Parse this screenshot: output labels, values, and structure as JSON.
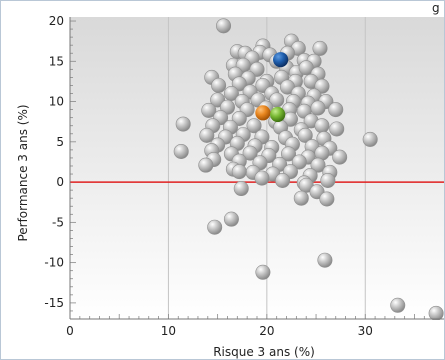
{
  "chart_data": {
    "type": "scatter",
    "title_fragment": "g",
    "xlabel": "Risque 3 ans (%)",
    "ylabel": "Performance 3 ans (%)",
    "xlim": [
      0,
      38
    ],
    "ylim": [
      -17,
      20.5
    ],
    "x_ticks": [
      0,
      10,
      20,
      30
    ],
    "y_ticks": [
      20,
      15,
      10,
      5,
      0,
      -5,
      -10,
      -15
    ],
    "grid": {
      "vertical": true,
      "horizontal": false
    },
    "reference_line": {
      "y": 0,
      "color": "#e02020"
    },
    "background_gradient": [
      "#d9d9d9",
      "#ffffff"
    ],
    "series": [
      {
        "marker_color": "#b8b8b8",
        "points": [
          [
            15.6,
            19.4
          ],
          [
            22.5,
            17.5
          ],
          [
            19.6,
            16.9
          ],
          [
            23.2,
            16.6
          ],
          [
            25.4,
            16.6
          ],
          [
            17.0,
            16.2
          ],
          [
            17.8,
            16.0
          ],
          [
            19.3,
            16.1
          ],
          [
            20.3,
            15.8
          ],
          [
            22.1,
            16.0
          ],
          [
            18.5,
            15.4
          ],
          [
            21.0,
            15.0
          ],
          [
            23.8,
            15.1
          ],
          [
            24.8,
            15.0
          ],
          [
            16.6,
            14.5
          ],
          [
            17.6,
            14.5
          ],
          [
            19.0,
            14.0
          ],
          [
            22.0,
            14.2
          ],
          [
            23.0,
            13.6
          ],
          [
            24.0,
            14.2
          ],
          [
            25.2,
            13.4
          ],
          [
            14.4,
            13.0
          ],
          [
            16.8,
            13.4
          ],
          [
            18.1,
            12.9
          ],
          [
            20.0,
            12.5
          ],
          [
            21.5,
            13.0
          ],
          [
            22.9,
            12.5
          ],
          [
            24.5,
            12.5
          ],
          [
            15.1,
            12.0
          ],
          [
            17.2,
            12.2
          ],
          [
            19.6,
            12.0
          ],
          [
            22.1,
            11.8
          ],
          [
            25.6,
            11.9
          ],
          [
            16.4,
            11.0
          ],
          [
            18.3,
            11.2
          ],
          [
            20.5,
            11.0
          ],
          [
            23.2,
            11.0
          ],
          [
            24.8,
            10.7
          ],
          [
            15.0,
            10.2
          ],
          [
            17.5,
            10.0
          ],
          [
            19.1,
            10.2
          ],
          [
            21.0,
            10.2
          ],
          [
            22.7,
            10.0
          ],
          [
            24.2,
            9.8
          ],
          [
            26.0,
            10.0
          ],
          [
            14.1,
            8.9
          ],
          [
            16.0,
            9.3
          ],
          [
            18.0,
            9.0
          ],
          [
            19.9,
            9.2
          ],
          [
            22.3,
            9.0
          ],
          [
            23.8,
            8.8
          ],
          [
            25.2,
            9.2
          ],
          [
            27.0,
            9.0
          ],
          [
            15.3,
            8.0
          ],
          [
            17.2,
            7.9
          ],
          [
            20.9,
            7.5
          ],
          [
            22.4,
            7.8
          ],
          [
            24.5,
            7.6
          ],
          [
            11.5,
            7.2
          ],
          [
            14.5,
            7.0
          ],
          [
            16.3,
            6.8
          ],
          [
            18.7,
            7.0
          ],
          [
            21.4,
            6.8
          ],
          [
            23.5,
            6.5
          ],
          [
            25.6,
            7.0
          ],
          [
            27.1,
            6.6
          ],
          [
            13.9,
            5.8
          ],
          [
            15.8,
            5.6
          ],
          [
            17.6,
            5.9
          ],
          [
            19.5,
            5.6
          ],
          [
            21.9,
            5.5
          ],
          [
            23.9,
            5.8
          ],
          [
            25.8,
            5.4
          ],
          [
            30.5,
            5.3
          ],
          [
            15.0,
            4.6
          ],
          [
            17.0,
            4.8
          ],
          [
            18.8,
            4.5
          ],
          [
            20.5,
            4.3
          ],
          [
            22.6,
            4.7
          ],
          [
            24.6,
            4.4
          ],
          [
            26.4,
            4.2
          ],
          [
            11.3,
            3.8
          ],
          [
            14.4,
            3.9
          ],
          [
            16.4,
            3.5
          ],
          [
            18.3,
            3.6
          ],
          [
            20.2,
            3.3
          ],
          [
            22.2,
            3.5
          ],
          [
            24.2,
            3.1
          ],
          [
            25.6,
            3.6
          ],
          [
            27.4,
            3.1
          ],
          [
            14.6,
            2.8
          ],
          [
            17.2,
            2.6
          ],
          [
            19.3,
            2.4
          ],
          [
            21.3,
            2.2
          ],
          [
            23.3,
            2.5
          ],
          [
            25.2,
            2.1
          ],
          [
            13.8,
            2.1
          ],
          [
            16.6,
            1.6
          ],
          [
            18.6,
            1.2
          ],
          [
            20.6,
            1.0
          ],
          [
            22.4,
            1.3
          ],
          [
            24.4,
            0.8
          ],
          [
            26.4,
            1.2
          ],
          [
            17.2,
            1.3
          ],
          [
            19.5,
            0.5
          ],
          [
            21.6,
            0.2
          ],
          [
            23.8,
            -0.1
          ],
          [
            26.2,
            0.2
          ],
          [
            17.4,
            -0.8
          ],
          [
            24.0,
            -0.4
          ],
          [
            25.1,
            -1.2
          ],
          [
            23.5,
            -2.0
          ],
          [
            26.1,
            -2.1
          ],
          [
            14.7,
            -5.6
          ],
          [
            16.4,
            -4.6
          ],
          [
            19.6,
            -11.2
          ],
          [
            25.9,
            -9.7
          ],
          [
            33.3,
            -15.3
          ],
          [
            37.2,
            -16.3
          ]
        ]
      },
      {
        "marker_color": "#1f5fae",
        "points": [
          [
            21.4,
            15.2
          ]
        ]
      },
      {
        "marker_color": "#e8861f",
        "points": [
          [
            19.6,
            8.6
          ]
        ]
      },
      {
        "marker_color": "#78b833",
        "points": [
          [
            21.1,
            8.4
          ]
        ]
      }
    ]
  }
}
